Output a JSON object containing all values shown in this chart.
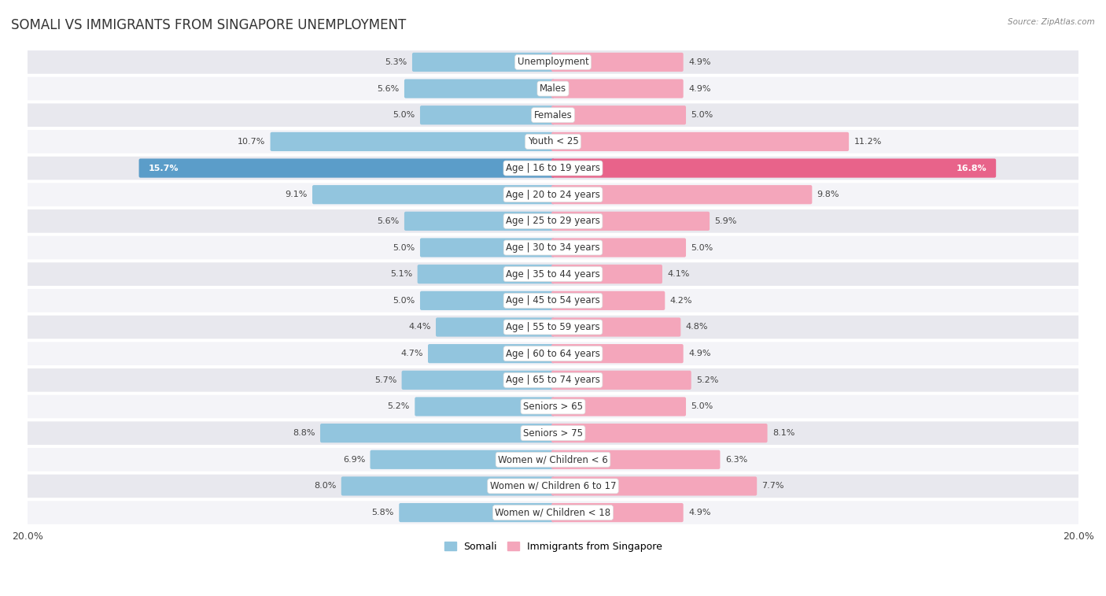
{
  "title": "SOMALI VS IMMIGRANTS FROM SINGAPORE UNEMPLOYMENT",
  "source": "Source: ZipAtlas.com",
  "categories": [
    "Unemployment",
    "Males",
    "Females",
    "Youth < 25",
    "Age | 16 to 19 years",
    "Age | 20 to 24 years",
    "Age | 25 to 29 years",
    "Age | 30 to 34 years",
    "Age | 35 to 44 years",
    "Age | 45 to 54 years",
    "Age | 55 to 59 years",
    "Age | 60 to 64 years",
    "Age | 65 to 74 years",
    "Seniors > 65",
    "Seniors > 75",
    "Women w/ Children < 6",
    "Women w/ Children 6 to 17",
    "Women w/ Children < 18"
  ],
  "somali_values": [
    5.3,
    5.6,
    5.0,
    10.7,
    15.7,
    9.1,
    5.6,
    5.0,
    5.1,
    5.0,
    4.4,
    4.7,
    5.7,
    5.2,
    8.8,
    6.9,
    8.0,
    5.8
  ],
  "singapore_values": [
    4.9,
    4.9,
    5.0,
    11.2,
    16.8,
    9.8,
    5.9,
    5.0,
    4.1,
    4.2,
    4.8,
    4.9,
    5.2,
    5.0,
    8.1,
    6.3,
    7.7,
    4.9
  ],
  "somali_color": "#92c5de",
  "singapore_color": "#f4a6bb",
  "somali_highlight_color": "#5b9dc9",
  "singapore_highlight_color": "#e8638a",
  "highlight_row": 4,
  "bg_color": "#ffffff",
  "row_even_color": "#e8e8ee",
  "row_odd_color": "#f4f4f8",
  "max_value": 20.0,
  "legend_somali": "Somali",
  "legend_singapore": "Immigrants from Singapore",
  "title_fontsize": 12,
  "label_fontsize": 8.5,
  "value_fontsize": 8.0
}
